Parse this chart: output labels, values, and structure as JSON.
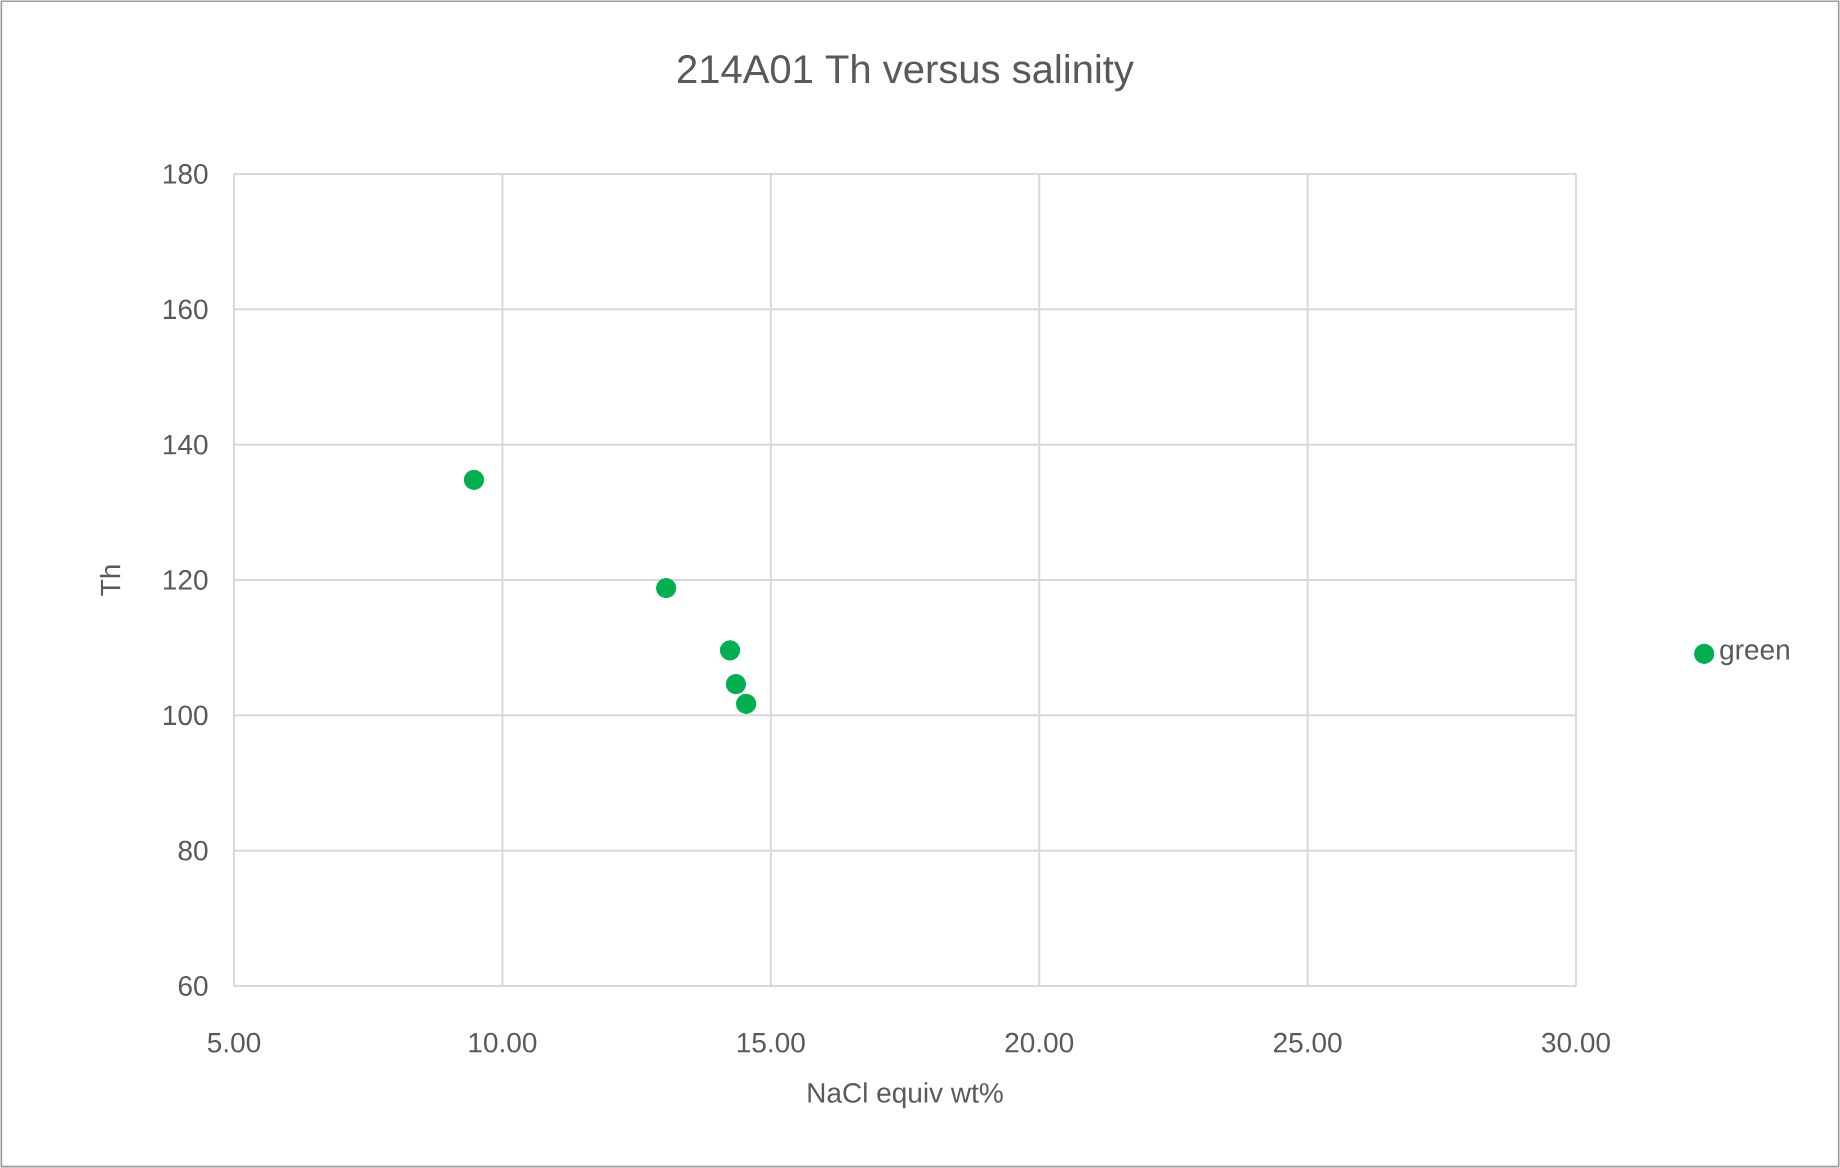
{
  "chart_data": {
    "type": "scatter",
    "title": "214A01 Th versus salinity",
    "xlabel": "NaCl equiv wt%",
    "ylabel": "Th",
    "x": [
      9.47,
      13.05,
      14.24,
      14.35,
      14.54
    ],
    "series": [
      {
        "name": "green",
        "color": "#00b050",
        "values": [
          134.8,
          118.8,
          109.6,
          104.6,
          101.7
        ]
      }
    ],
    "xlim": [
      5,
      30
    ],
    "xticks": [
      {
        "value": 5,
        "label": "5.00"
      },
      {
        "value": 10,
        "label": "10.00"
      },
      {
        "value": 15,
        "label": "15.00"
      },
      {
        "value": 20,
        "label": "20.00"
      },
      {
        "value": 25,
        "label": "25.00"
      },
      {
        "value": 30,
        "label": "30.00"
      }
    ],
    "ylim": [
      60,
      180
    ],
    "yticks": [
      60,
      80,
      100,
      120,
      140,
      160,
      180
    ],
    "grid": true,
    "legend": "right"
  }
}
